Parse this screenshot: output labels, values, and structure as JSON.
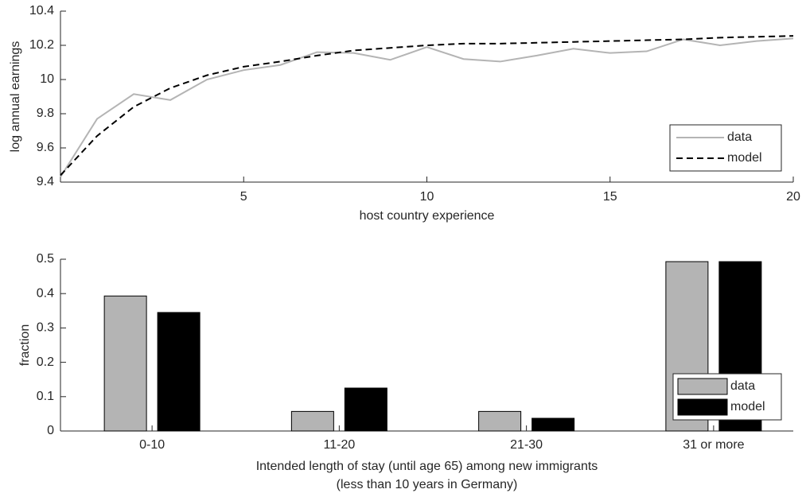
{
  "chart_data": [
    {
      "type": "line",
      "xlabel": "host country experience",
      "ylabel": "log annual earnings",
      "x": [
        0,
        1,
        2,
        3,
        4,
        5,
        6,
        7,
        8,
        9,
        10,
        11,
        12,
        13,
        14,
        15,
        16,
        17,
        18,
        19,
        20
      ],
      "xlim": [
        0,
        20
      ],
      "xticks": [
        5,
        10,
        15,
        20
      ],
      "ylim": [
        9.4,
        10.4
      ],
      "yticks": [
        9.4,
        9.6,
        9.8,
        10,
        10.2,
        10.4
      ],
      "legend": "lower right",
      "series": [
        {
          "name": "data",
          "color": "#b4b4b4",
          "dash": "solid",
          "values": [
            9.43,
            9.77,
            9.915,
            9.88,
            10.0,
            10.055,
            10.085,
            10.16,
            10.155,
            10.115,
            10.19,
            10.12,
            10.105,
            10.14,
            10.18,
            10.155,
            10.165,
            10.235,
            10.2,
            10.225,
            10.24
          ]
        },
        {
          "name": "model",
          "color": "#000000",
          "dash": "dashed",
          "values": [
            9.44,
            9.67,
            9.84,
            9.95,
            10.025,
            10.075,
            10.105,
            10.14,
            10.17,
            10.185,
            10.2,
            10.21,
            10.21,
            10.215,
            10.22,
            10.225,
            10.23,
            10.235,
            10.245,
            10.25,
            10.255
          ]
        }
      ]
    },
    {
      "type": "bar",
      "xlabel": [
        "Intended length of stay (until age 65) among new immigrants",
        "(less than 10 years in Germany)"
      ],
      "ylabel": "fraction",
      "categories": [
        "0-10",
        "11-20",
        "21-30",
        "31 or more"
      ],
      "ylim": [
        0,
        0.5
      ],
      "yticks": [
        0,
        0.1,
        0.2,
        0.3,
        0.4,
        0.5
      ],
      "legend": "lower right",
      "series": [
        {
          "name": "data",
          "color": "#b4b4b4",
          "values": [
            0.393,
            0.057,
            0.057,
            0.493
          ]
        },
        {
          "name": "model",
          "color": "#000000",
          "values": [
            0.345,
            0.125,
            0.037,
            0.493
          ]
        }
      ]
    }
  ]
}
